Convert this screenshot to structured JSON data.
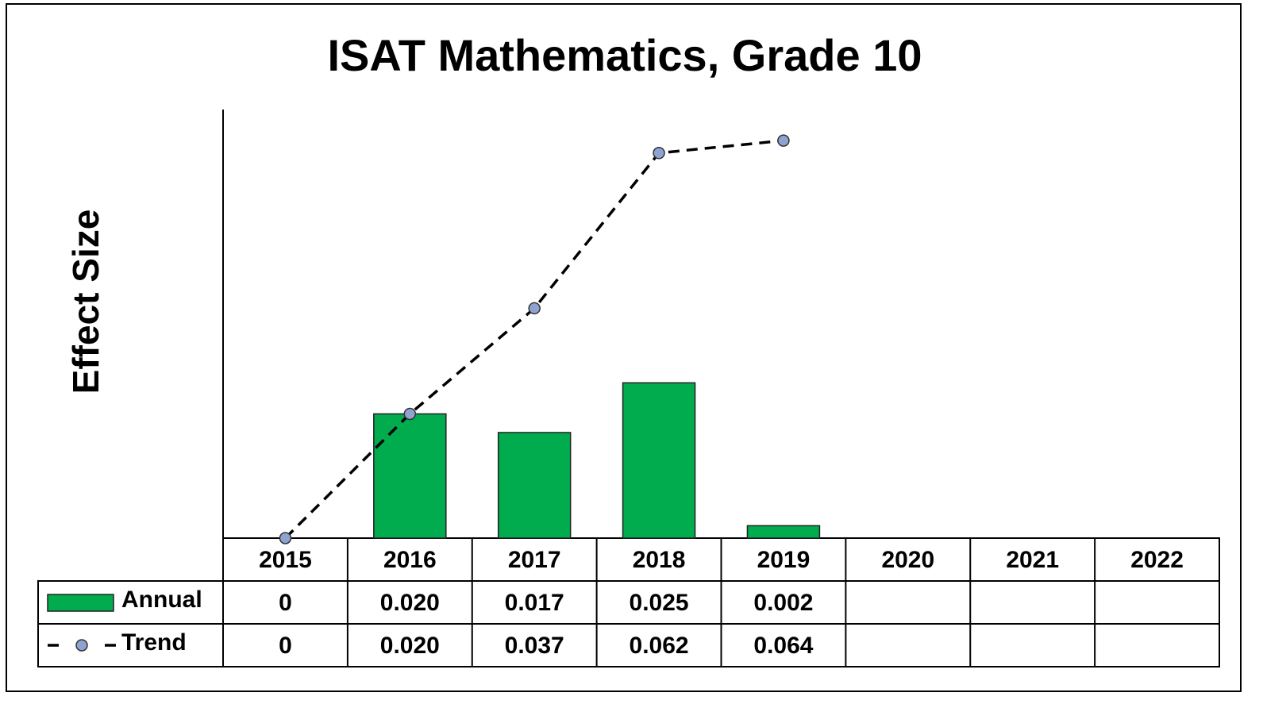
{
  "chart_data": {
    "type": "bar",
    "title": "ISAT Mathematics, Grade 10",
    "y_label": "Effect Size",
    "categories": [
      "2015",
      "2016",
      "2017",
      "2018",
      "2019",
      "2020",
      "2021",
      "2022"
    ],
    "series": [
      {
        "name": "Annual",
        "type": "bar",
        "color": "#00ac4d",
        "values": [
          0,
          0.02,
          0.017,
          0.025,
          0.002,
          null,
          null,
          null
        ],
        "value_labels": [
          "0",
          "0.020",
          "0.017",
          "0.025",
          "0.002",
          null,
          null,
          null
        ]
      },
      {
        "name": "Trend",
        "type": "line",
        "color": "#8fa3d0",
        "values": [
          0,
          0.02,
          0.037,
          0.062,
          0.064,
          null,
          null,
          null
        ],
        "value_labels": [
          "0",
          "0.020",
          "0.037",
          "0.062",
          "0.064",
          null,
          null,
          null
        ]
      }
    ],
    "ylim": [
      0,
      0.069
    ],
    "grid": false,
    "legend": "table"
  }
}
